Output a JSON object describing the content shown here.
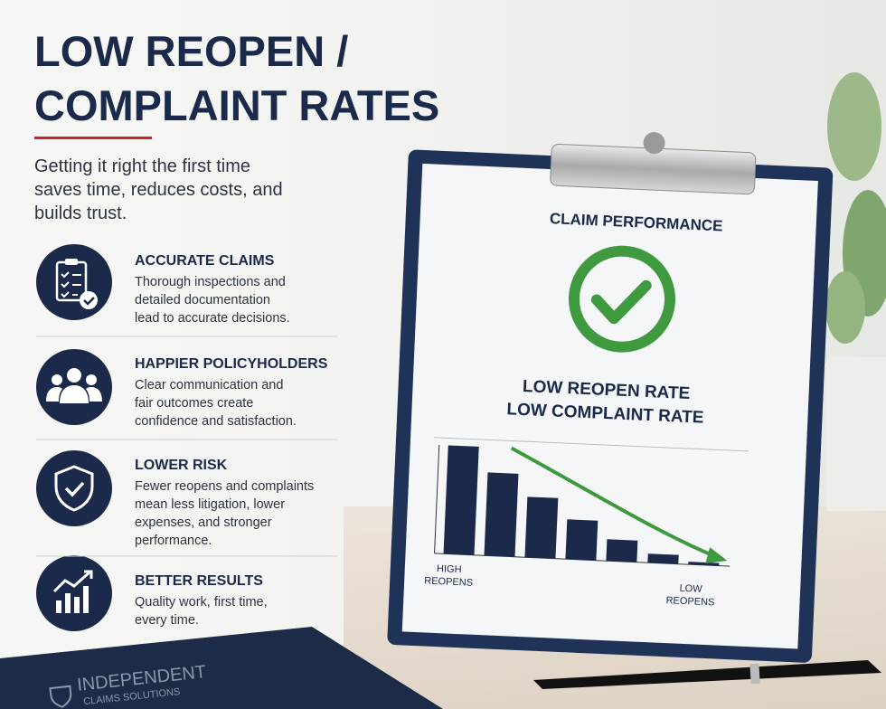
{
  "header": {
    "title": [
      "LOW REOPEN /",
      "COMPLAINT RATES"
    ],
    "subtitle": [
      "Getting it right the first time",
      "saves time, reduces costs, and",
      "builds trust."
    ]
  },
  "features": [
    {
      "title": "ACCURATE CLAIMS",
      "description": [
        "Thorough inspections and",
        "detailed documentation",
        "lead to accurate decisions."
      ]
    },
    {
      "title": "HAPPIER POLICYHOLDERS",
      "description": [
        "Clear communication and",
        "fair outcomes create",
        "confidence and satisfaction."
      ]
    },
    {
      "title": "LOWER RISK",
      "description": [
        "Fewer reopens and complaints",
        "mean less litigation, lower",
        "expenses, and stronger",
        "performance."
      ]
    },
    {
      "title": "BETTER RESULTS",
      "description": [
        "Quality work, first time,",
        "every time."
      ]
    }
  ],
  "clipboard": {
    "heading": "CLAIM PERFORMANCE",
    "status": [
      "LOW REOPEN RATE",
      "LOW COMPLAINT RATE"
    ],
    "axis_start": [
      "HIGH",
      "REOPENS"
    ],
    "axis_end": [
      "LOW",
      "REOPENS"
    ]
  },
  "folder": {
    "brand": [
      "INDEPENDENT",
      "CLAIMS SOLUTIONS"
    ]
  }
}
